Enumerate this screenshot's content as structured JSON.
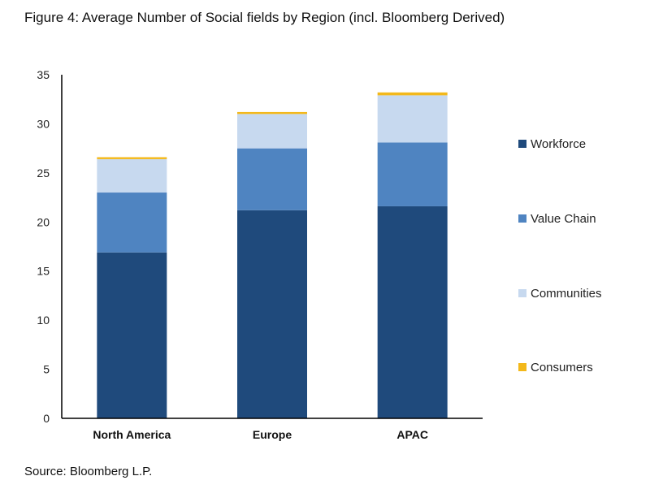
{
  "figure": {
    "title": "Figure 4: Average Number of Social fields by Region (incl. Bloomberg Derived)",
    "source": "Source: Bloomberg L.P."
  },
  "chart_data": {
    "type": "bar",
    "stacked": true,
    "categories": [
      "North America",
      "Europe",
      "APAC"
    ],
    "series": [
      {
        "name": "Workforce",
        "color": "#1f4a7c",
        "values": [
          16.9,
          21.2,
          21.6
        ]
      },
      {
        "name": "Value Chain",
        "color": "#4f84c1",
        "values": [
          6.1,
          6.3,
          6.5
        ]
      },
      {
        "name": "Communities",
        "color": "#c7d9ef",
        "values": [
          3.4,
          3.5,
          4.8
        ]
      },
      {
        "name": "Consumers",
        "color": "#f3b81a",
        "values": [
          0.2,
          0.2,
          0.3
        ]
      }
    ],
    "ylim": [
      0,
      35
    ],
    "yticks": [
      0,
      5,
      10,
      15,
      20,
      25,
      30,
      35
    ],
    "title": "",
    "xlabel": "",
    "ylabel": "",
    "grid": false,
    "legend_position": "right"
  }
}
